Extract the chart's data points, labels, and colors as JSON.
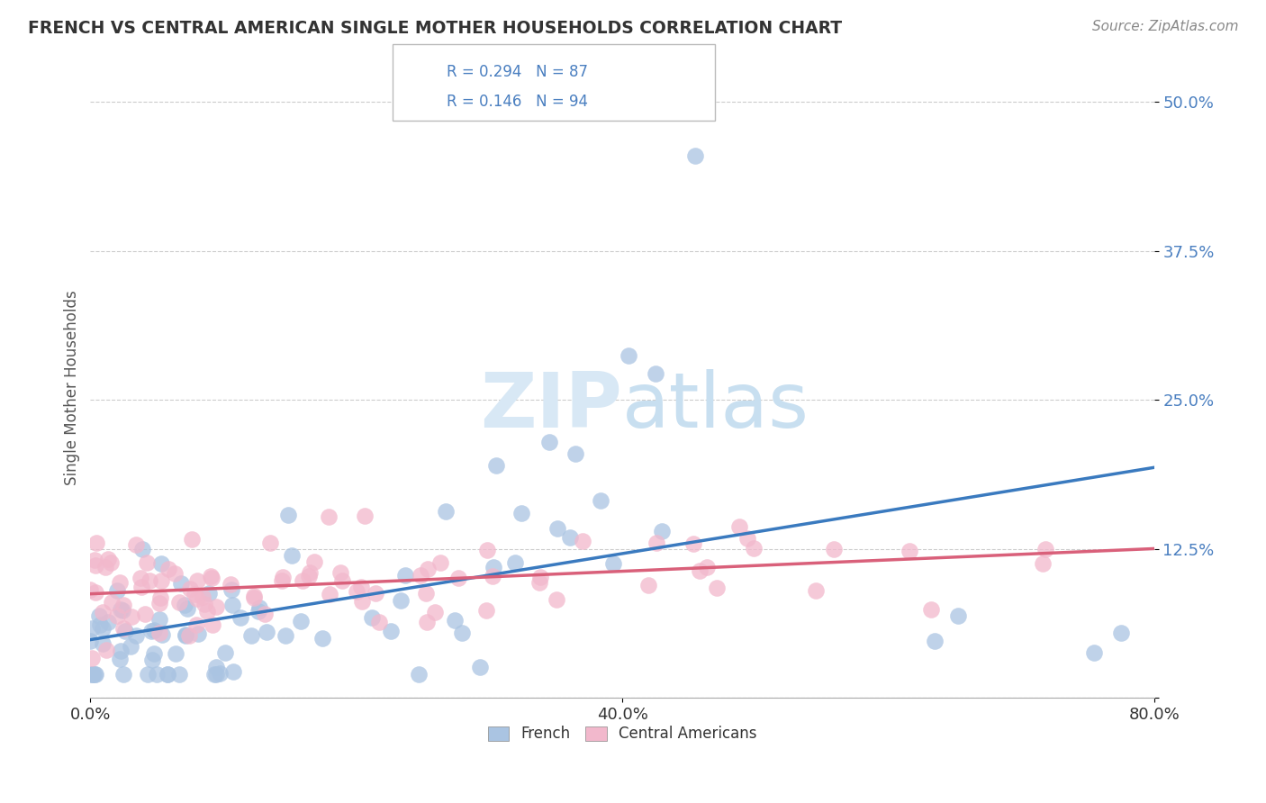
{
  "title": "FRENCH VS CENTRAL AMERICAN SINGLE MOTHER HOUSEHOLDS CORRELATION CHART",
  "source": "Source: ZipAtlas.com",
  "ylabel": "Single Mother Households",
  "xlim": [
    0.0,
    0.8
  ],
  "ylim": [
    0.0,
    0.52
  ],
  "ytick_positions": [
    0.0,
    0.125,
    0.25,
    0.375,
    0.5
  ],
  "ytick_labels": [
    "",
    "12.5%",
    "25.0%",
    "37.5%",
    "50.0%"
  ],
  "french_R": 0.294,
  "french_N": 87,
  "central_R": 0.146,
  "central_N": 94,
  "french_color": "#aac4e2",
  "central_color": "#f2b8cc",
  "french_line_color": "#3a7abf",
  "central_line_color": "#d9607a",
  "legend_text_color": "#4a7fc0",
  "background_color": "#ffffff",
  "grid_color": "#cccccc",
  "watermark_color": "#d8e8f5",
  "title_color": "#333333",
  "source_color": "#888888",
  "tick_color": "#4a7fc0",
  "xtick_color": "#333333"
}
